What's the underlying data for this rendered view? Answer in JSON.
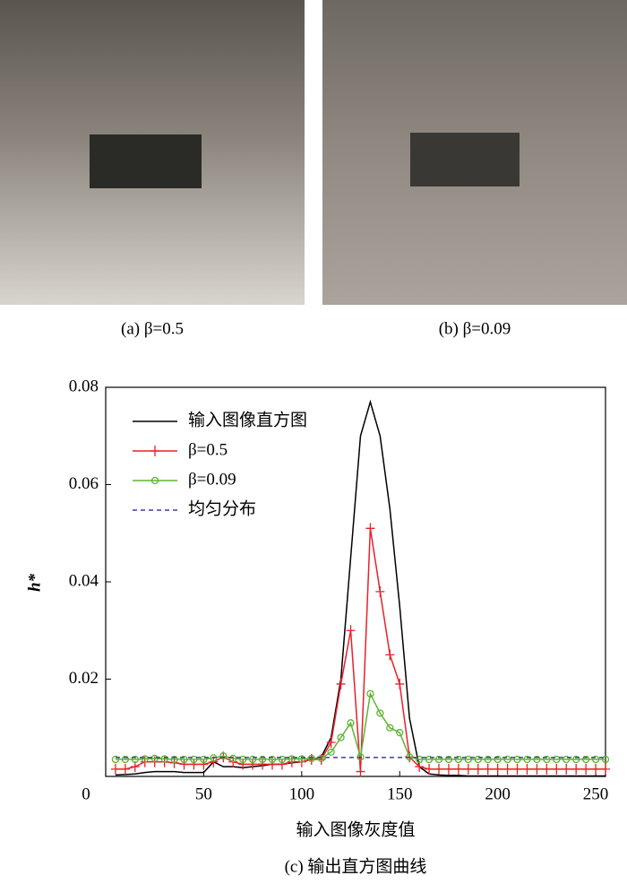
{
  "panels": [
    {
      "caption": "(a) β=0.5"
    },
    {
      "caption": "(b) β=0.09"
    }
  ],
  "chart_data": {
    "type": "line",
    "title": "(c) 输出直方图曲线",
    "x_label": "输入图像灰度值",
    "y_label": "h*",
    "xlim": [
      0,
      255
    ],
    "ylim": [
      0,
      0.08
    ],
    "xticks": [
      0,
      50,
      100,
      150,
      200,
      250
    ],
    "yticks": [
      0.02,
      0.04,
      0.06,
      0.08
    ],
    "legend": "upper left",
    "x": [
      5,
      10,
      15,
      20,
      25,
      30,
      35,
      40,
      45,
      50,
      55,
      60,
      65,
      70,
      75,
      80,
      85,
      90,
      95,
      100,
      105,
      110,
      115,
      120,
      125,
      130,
      135,
      140,
      145,
      150,
      155,
      160,
      165,
      170,
      175,
      180,
      185,
      190,
      195,
      200,
      205,
      210,
      215,
      220,
      225,
      230,
      235,
      240,
      245,
      250,
      255
    ],
    "series": [
      {
        "name": "输入图像直方图",
        "color": "#000000",
        "marker": "none",
        "dash": false,
        "values": [
          0.0003,
          0.0004,
          0.0005,
          0.0008,
          0.001,
          0.001,
          0.001,
          0.0008,
          0.0008,
          0.0008,
          0.003,
          0.002,
          0.002,
          0.0018,
          0.002,
          0.0022,
          0.0025,
          0.0025,
          0.0028,
          0.003,
          0.0035,
          0.004,
          0.008,
          0.02,
          0.045,
          0.07,
          0.077,
          0.07,
          0.055,
          0.035,
          0.012,
          0.002,
          0.0005,
          0.0003,
          0.0002,
          0.0002,
          0.0001,
          0.0001,
          0.0001,
          0.0001,
          0.0001,
          0.0001,
          0.0001,
          0.0001,
          0.0001,
          0.0001,
          0.0001,
          0.0001,
          0.0001,
          0.0001,
          0.0001
        ]
      },
      {
        "name": "β=0.5",
        "color": "#e8202a",
        "marker": "plus",
        "dash": false,
        "values": [
          0.0015,
          0.0015,
          0.002,
          0.003,
          0.003,
          0.003,
          0.0028,
          0.0025,
          0.0025,
          0.0025,
          0.003,
          0.004,
          0.003,
          0.0025,
          0.0025,
          0.0025,
          0.0025,
          0.0025,
          0.003,
          0.003,
          0.0035,
          0.0035,
          0.007,
          0.019,
          0.03,
          0.001,
          0.051,
          0.038,
          0.025,
          0.019,
          0.004,
          0.002,
          0.0015,
          0.0015,
          0.0015,
          0.0015,
          0.0015,
          0.0015,
          0.0015,
          0.0015,
          0.0015,
          0.0015,
          0.0015,
          0.0015,
          0.0015,
          0.0015,
          0.0015,
          0.0015,
          0.0015,
          0.0015,
          0.0015
        ]
      },
      {
        "name": "β=0.09",
        "color": "#5cb531",
        "marker": "circle",
        "dash": false,
        "values": [
          0.0035,
          0.0035,
          0.0035,
          0.0036,
          0.0037,
          0.0036,
          0.0035,
          0.0035,
          0.0035,
          0.0035,
          0.0038,
          0.0042,
          0.0037,
          0.0035,
          0.0035,
          0.0035,
          0.0035,
          0.0035,
          0.0036,
          0.0036,
          0.0037,
          0.0037,
          0.005,
          0.008,
          0.011,
          0.004,
          0.017,
          0.013,
          0.01,
          0.009,
          0.004,
          0.0035,
          0.0035,
          0.0035,
          0.0035,
          0.0035,
          0.0035,
          0.0035,
          0.0035,
          0.0035,
          0.0035,
          0.0035,
          0.0035,
          0.0035,
          0.0035,
          0.0035,
          0.0035,
          0.0035,
          0.0035,
          0.0035,
          0.0035
        ]
      },
      {
        "name": "均匀分布",
        "color": "#3a3ab0",
        "marker": "none",
        "dash": true,
        "values": [
          0.0039,
          0.0039,
          0.0039,
          0.0039,
          0.0039,
          0.0039,
          0.0039,
          0.0039,
          0.0039,
          0.0039,
          0.0039,
          0.0039,
          0.0039,
          0.0039,
          0.0039,
          0.0039,
          0.0039,
          0.0039,
          0.0039,
          0.0039,
          0.0039,
          0.0039,
          0.0039,
          0.0039,
          0.0039,
          0.0039,
          0.0039,
          0.0039,
          0.0039,
          0.0039,
          0.0039,
          0.0039,
          0.0039,
          0.0039,
          0.0039,
          0.0039,
          0.0039,
          0.0039,
          0.0039,
          0.0039,
          0.0039,
          0.0039,
          0.0039,
          0.0039,
          0.0039,
          0.0039,
          0.0039,
          0.0039,
          0.0039,
          0.0039,
          0.0039
        ]
      }
    ]
  }
}
